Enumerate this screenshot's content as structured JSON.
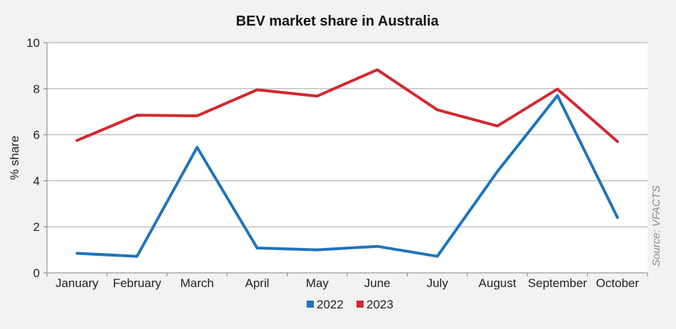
{
  "chart_data": {
    "type": "line",
    "title": "BEV market share in Australia",
    "ylabel": "% share",
    "xlabel": "",
    "categories": [
      "January",
      "February",
      "March",
      "April",
      "May",
      "June",
      "July",
      "August",
      "September",
      "October"
    ],
    "ylim": [
      0,
      10
    ],
    "yticks": [
      "0",
      "2",
      "4",
      "6",
      "8",
      "10"
    ],
    "grid": true,
    "legend_position": "bottom",
    "series": [
      {
        "name": "2022",
        "color": "#1f74bc",
        "values": [
          0.85,
          0.72,
          5.45,
          1.08,
          1.0,
          1.15,
          0.72,
          4.4,
          7.7,
          2.4
        ]
      },
      {
        "name": "2023",
        "color": "#d3282e",
        "values": [
          5.75,
          6.85,
          6.82,
          7.95,
          7.68,
          8.82,
          7.08,
          6.38,
          7.98,
          5.7
        ]
      }
    ],
    "source_note": "Source: VFACTS"
  }
}
